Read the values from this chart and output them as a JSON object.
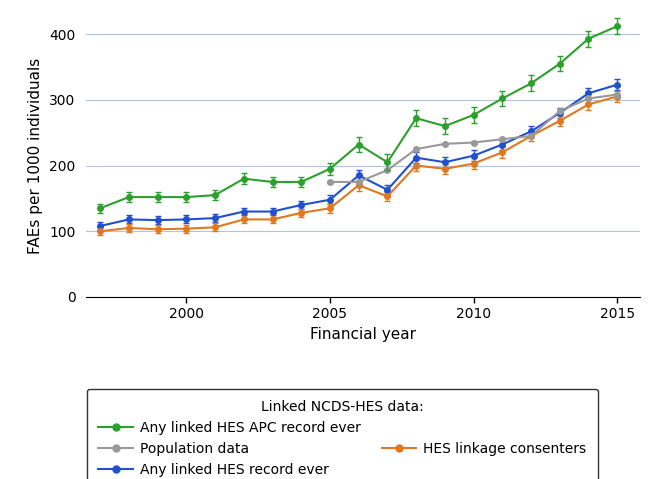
{
  "years": [
    1997,
    1998,
    1999,
    2000,
    2001,
    2002,
    2003,
    2004,
    2005,
    2006,
    2007,
    2008,
    2009,
    2010,
    2011,
    2012,
    2013,
    2014,
    2015
  ],
  "green_y": [
    135,
    152,
    152,
    152,
    155,
    180,
    175,
    175,
    195,
    232,
    205,
    272,
    260,
    277,
    302,
    325,
    355,
    393,
    412
  ],
  "green_lo": [
    128,
    144,
    144,
    144,
    147,
    172,
    167,
    167,
    186,
    220,
    193,
    260,
    248,
    265,
    291,
    313,
    344,
    381,
    400
  ],
  "green_hi": [
    142,
    160,
    160,
    160,
    163,
    188,
    183,
    183,
    204,
    244,
    217,
    284,
    272,
    289,
    313,
    337,
    366,
    405,
    424
  ],
  "blue_y": [
    108,
    118,
    117,
    118,
    120,
    130,
    130,
    140,
    148,
    185,
    163,
    212,
    205,
    215,
    232,
    252,
    280,
    310,
    323
  ],
  "blue_lo": [
    102,
    112,
    111,
    112,
    114,
    124,
    124,
    134,
    141,
    177,
    156,
    204,
    197,
    207,
    224,
    244,
    272,
    302,
    315
  ],
  "blue_hi": [
    114,
    124,
    123,
    124,
    126,
    136,
    136,
    146,
    155,
    193,
    170,
    220,
    213,
    223,
    240,
    260,
    288,
    318,
    331
  ],
  "orange_y": [
    100,
    105,
    103,
    104,
    106,
    118,
    118,
    128,
    135,
    170,
    153,
    200,
    195,
    203,
    220,
    245,
    268,
    293,
    305
  ],
  "orange_lo": [
    94,
    99,
    97,
    98,
    100,
    112,
    112,
    122,
    128,
    162,
    146,
    192,
    187,
    195,
    212,
    237,
    260,
    285,
    297
  ],
  "orange_hi": [
    106,
    111,
    109,
    110,
    112,
    124,
    124,
    134,
    142,
    178,
    160,
    208,
    203,
    211,
    228,
    253,
    276,
    301,
    313
  ],
  "gray_y": [
    null,
    null,
    null,
    null,
    null,
    null,
    null,
    null,
    175,
    175,
    193,
    225,
    233,
    235,
    240,
    245,
    283,
    302,
    308
  ],
  "gray_lo": [
    null,
    null,
    null,
    null,
    null,
    null,
    null,
    null,
    173,
    173,
    191,
    223,
    231,
    233,
    238,
    243,
    281,
    300,
    306
  ],
  "gray_hi": [
    null,
    null,
    null,
    null,
    null,
    null,
    null,
    null,
    177,
    177,
    195,
    227,
    235,
    237,
    242,
    247,
    285,
    304,
    310
  ],
  "green_color": "#2ca02c",
  "blue_color": "#2050d0",
  "orange_color": "#e07820",
  "gray_color": "#999999",
  "xlabel": "Financial year",
  "ylabel": "FAEs per 1000 individuals",
  "ylim": [
    0,
    430
  ],
  "yticks": [
    0,
    100,
    200,
    300,
    400
  ],
  "xticks": [
    2000,
    2005,
    2010,
    2015
  ],
  "legend_title": "Linked NCDS-HES data:",
  "legend_label_green": "Any linked HES APC record ever",
  "legend_label_blue": "Any linked HES record ever",
  "legend_label_orange": "HES linkage consenters",
  "legend_label_gray": "Population data"
}
